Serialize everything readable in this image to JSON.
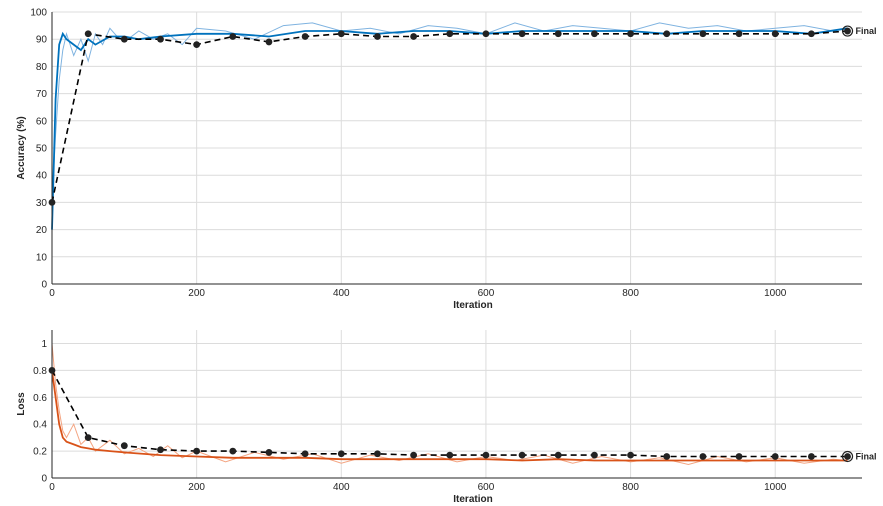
{
  "chart_data": [
    {
      "type": "line",
      "xlabel": "Iteration",
      "ylabel": "Accuracy (%)",
      "xlim": [
        0,
        1120
      ],
      "ylim": [
        0,
        100
      ],
      "xticks": [
        0,
        200,
        400,
        600,
        800,
        1000
      ],
      "yticks": [
        0,
        10,
        20,
        30,
        40,
        50,
        60,
        70,
        80,
        90,
        100
      ],
      "grid": true,
      "annotation": "Final",
      "series": [
        {
          "style": "raw",
          "color": "#7fb3e0",
          "x": [
            0,
            5,
            10,
            15,
            20,
            25,
            30,
            40,
            50,
            60,
            70,
            80,
            90,
            100,
            120,
            140,
            160,
            180,
            200,
            240,
            280,
            320,
            360,
            400,
            440,
            480,
            520,
            560,
            600,
            640,
            680,
            720,
            760,
            800,
            840,
            880,
            920,
            960,
            1000,
            1040,
            1080,
            1100
          ],
          "y": [
            30,
            55,
            75,
            86,
            92,
            88,
            84,
            90,
            82,
            92,
            88,
            94,
            91,
            89,
            93,
            90,
            92,
            88,
            94,
            93,
            90,
            95,
            96,
            93,
            94,
            92,
            95,
            94,
            92,
            96,
            93,
            95,
            94,
            93,
            96,
            94,
            95,
            93,
            94,
            95,
            93,
            94
          ]
        },
        {
          "style": "smoothed",
          "color": "#0072bd",
          "x": [
            0,
            5,
            10,
            15,
            20,
            30,
            40,
            50,
            60,
            80,
            100,
            120,
            150,
            200,
            250,
            300,
            350,
            400,
            450,
            500,
            550,
            600,
            650,
            700,
            750,
            800,
            850,
            900,
            950,
            1000,
            1050,
            1100
          ],
          "y": [
            20,
            68,
            88,
            92,
            90,
            88,
            86,
            90,
            88,
            91,
            91,
            90,
            91,
            92,
            92,
            91,
            93,
            93,
            92,
            93,
            93,
            92,
            93,
            93,
            93,
            93,
            92,
            93,
            93,
            93,
            92,
            94
          ]
        },
        {
          "style": "validation",
          "color": "#000000",
          "x": [
            0,
            50,
            100,
            150,
            200,
            250,
            300,
            350,
            400,
            450,
            500,
            550,
            600,
            650,
            700,
            750,
            800,
            850,
            900,
            950,
            1000,
            1050,
            1100
          ],
          "y": [
            30,
            92,
            90,
            90,
            88,
            91,
            89,
            91,
            92,
            91,
            91,
            92,
            92,
            92,
            92,
            92,
            92,
            92,
            92,
            92,
            92,
            92,
            93
          ]
        }
      ]
    },
    {
      "type": "line",
      "xlabel": "Iteration",
      "ylabel": "Loss",
      "xlim": [
        0,
        1120
      ],
      "ylim": [
        0,
        1.1
      ],
      "xticks": [
        0,
        200,
        400,
        600,
        800,
        1000
      ],
      "yticks": [
        0,
        0.2,
        0.4,
        0.6,
        0.8,
        1
      ],
      "grid": true,
      "annotation": "Final",
      "series": [
        {
          "style": "raw",
          "color": "#f4a582",
          "x": [
            0,
            5,
            10,
            15,
            20,
            30,
            40,
            50,
            60,
            80,
            100,
            120,
            140,
            160,
            180,
            200,
            240,
            280,
            320,
            360,
            400,
            440,
            480,
            520,
            560,
            600,
            640,
            680,
            720,
            760,
            800,
            840,
            880,
            920,
            960,
            1000,
            1040,
            1080,
            1100
          ],
          "y": [
            1.0,
            0.7,
            0.5,
            0.35,
            0.3,
            0.4,
            0.25,
            0.3,
            0.2,
            0.28,
            0.18,
            0.22,
            0.16,
            0.24,
            0.15,
            0.2,
            0.12,
            0.19,
            0.14,
            0.18,
            0.11,
            0.17,
            0.13,
            0.18,
            0.12,
            0.16,
            0.13,
            0.17,
            0.11,
            0.16,
            0.12,
            0.15,
            0.1,
            0.16,
            0.12,
            0.15,
            0.11,
            0.14,
            0.13
          ]
        },
        {
          "style": "smoothed",
          "color": "#d95319",
          "x": [
            0,
            5,
            10,
            15,
            20,
            30,
            40,
            50,
            60,
            80,
            100,
            150,
            200,
            250,
            300,
            350,
            400,
            450,
            500,
            550,
            600,
            650,
            700,
            750,
            800,
            850,
            900,
            950,
            1000,
            1050,
            1100
          ],
          "y": [
            0.8,
            0.6,
            0.4,
            0.3,
            0.27,
            0.25,
            0.23,
            0.22,
            0.21,
            0.2,
            0.19,
            0.17,
            0.16,
            0.15,
            0.15,
            0.15,
            0.14,
            0.14,
            0.14,
            0.14,
            0.14,
            0.13,
            0.14,
            0.13,
            0.13,
            0.13,
            0.13,
            0.13,
            0.13,
            0.13,
            0.13
          ]
        },
        {
          "style": "validation",
          "color": "#000000",
          "x": [
            0,
            50,
            100,
            150,
            200,
            250,
            300,
            350,
            400,
            450,
            500,
            550,
            600,
            650,
            700,
            750,
            800,
            850,
            900,
            950,
            1000,
            1050,
            1100
          ],
          "y": [
            0.8,
            0.3,
            0.24,
            0.21,
            0.2,
            0.2,
            0.19,
            0.18,
            0.18,
            0.18,
            0.17,
            0.17,
            0.17,
            0.17,
            0.17,
            0.17,
            0.17,
            0.16,
            0.16,
            0.16,
            0.16,
            0.16,
            0.16
          ]
        }
      ]
    }
  ]
}
